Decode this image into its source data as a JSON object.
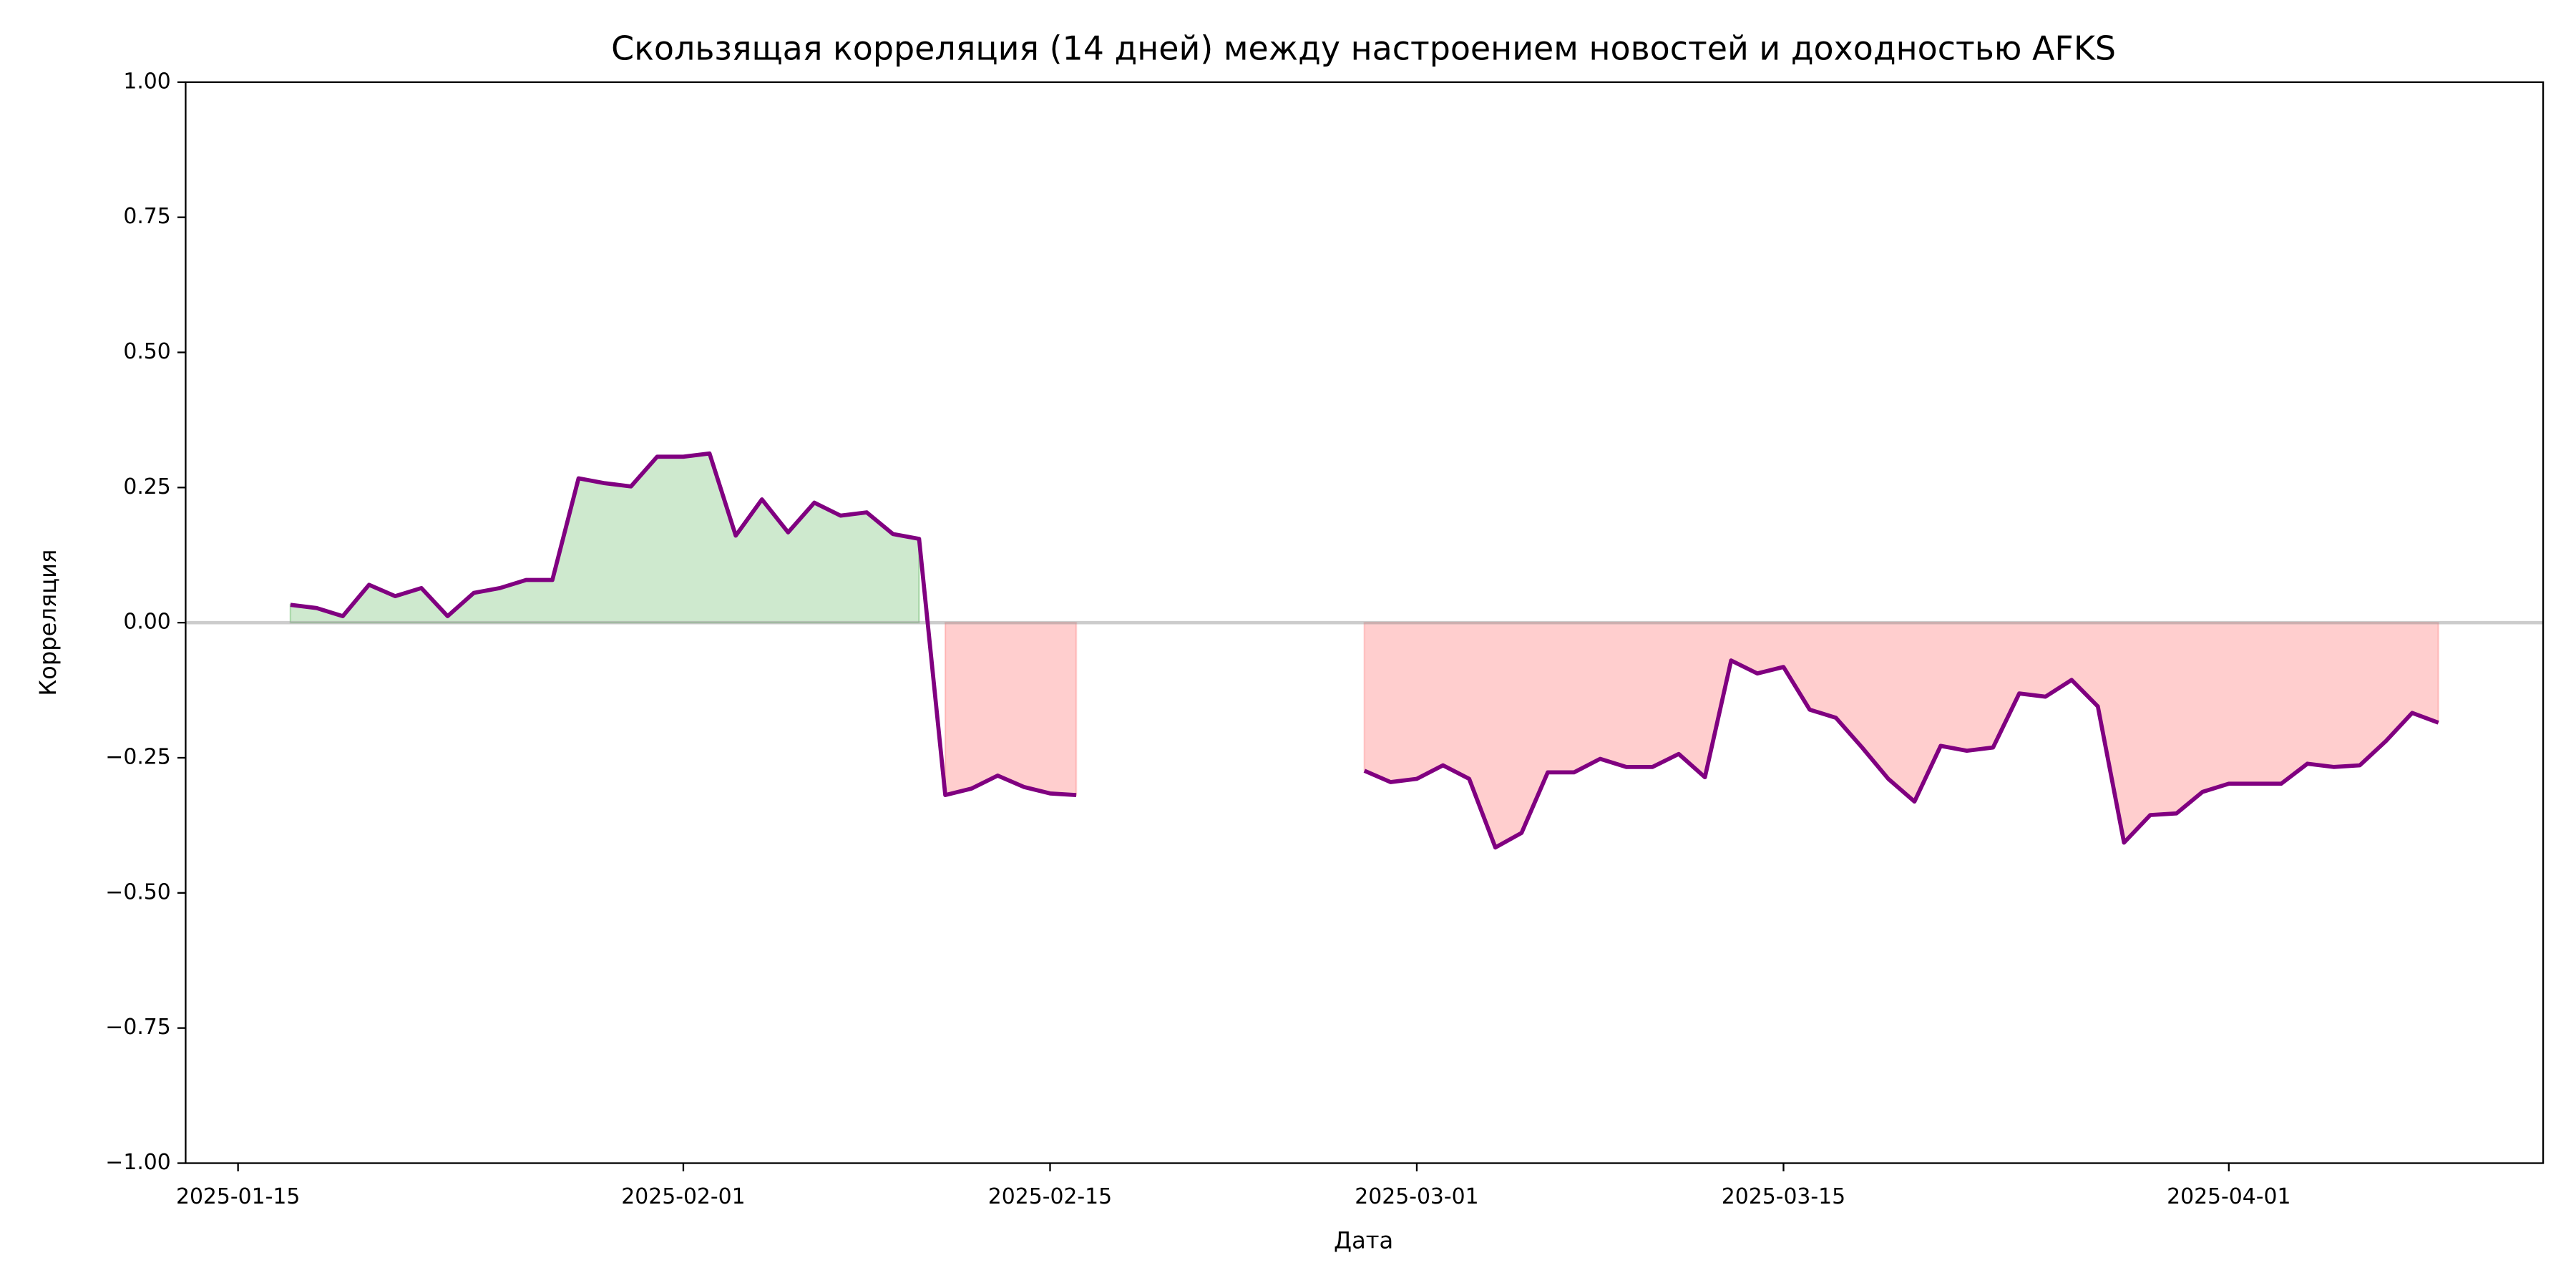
{
  "chart_data": {
    "type": "line",
    "title": "Скользящая корреляция (14 дней) между настроением новостей и доходностью AFKS",
    "xlabel": "Дата",
    "ylabel": "Корреляция",
    "x": [
      "2025-01-17",
      "2025-01-18",
      "2025-01-19",
      "2025-01-20",
      "2025-01-21",
      "2025-01-22",
      "2025-01-23",
      "2025-01-24",
      "2025-01-25",
      "2025-01-26",
      "2025-01-27",
      "2025-01-28",
      "2025-01-29",
      "2025-01-30",
      "2025-01-31",
      "2025-02-01",
      "2025-02-02",
      "2025-02-03",
      "2025-02-04",
      "2025-02-05",
      "2025-02-06",
      "2025-02-07",
      "2025-02-08",
      "2025-02-09",
      "2025-02-10",
      "2025-02-11",
      "2025-02-12",
      "2025-02-13",
      "2025-02-14",
      "2025-02-15",
      "2025-02-16",
      "2025-02-17",
      "2025-02-18",
      "2025-02-19",
      "2025-02-20",
      "2025-02-21",
      "2025-02-22",
      "2025-02-23",
      "2025-02-24",
      "2025-02-25",
      "2025-02-26",
      "2025-02-27",
      "2025-02-28",
      "2025-03-01",
      "2025-03-02",
      "2025-03-03",
      "2025-03-04",
      "2025-03-05",
      "2025-03-06",
      "2025-03-07",
      "2025-03-08",
      "2025-03-09",
      "2025-03-10",
      "2025-03-11",
      "2025-03-12",
      "2025-03-13",
      "2025-03-14",
      "2025-03-15",
      "2025-03-16",
      "2025-03-17",
      "2025-03-18",
      "2025-03-19",
      "2025-03-20",
      "2025-03-21",
      "2025-03-22",
      "2025-03-23",
      "2025-03-24",
      "2025-03-25",
      "2025-03-26",
      "2025-03-27",
      "2025-03-28",
      "2025-03-29",
      "2025-03-30",
      "2025-03-31",
      "2025-04-01",
      "2025-04-02",
      "2025-04-03",
      "2025-04-04",
      "2025-04-05",
      "2025-04-06",
      "2025-04-07",
      "2025-04-08",
      "2025-04-09"
    ],
    "series": [
      {
        "name": "Корреляция",
        "color": "#800080",
        "values": [
          0.033,
          0.027,
          0.012,
          0.07,
          0.049,
          0.064,
          0.012,
          0.055,
          0.064,
          0.079,
          0.079,
          0.267,
          0.258,
          0.252,
          0.307,
          0.307,
          0.313,
          0.161,
          0.228,
          0.167,
          0.222,
          0.198,
          0.204,
          0.164,
          0.155,
          -0.319,
          -0.307,
          -0.283,
          -0.304,
          -0.316,
          -0.319,
          null,
          null,
          null,
          null,
          null,
          null,
          null,
          null,
          null,
          null,
          -0.274,
          -0.295,
          -0.289,
          -0.264,
          -0.289,
          -0.416,
          -0.389,
          -0.277,
          -0.277,
          -0.252,
          -0.267,
          -0.267,
          -0.243,
          -0.286,
          -0.07,
          -0.094,
          -0.082,
          -0.161,
          -0.176,
          -0.231,
          -0.289,
          -0.331,
          -0.228,
          -0.237,
          -0.231,
          -0.131,
          -0.137,
          -0.106,
          -0.155,
          -0.407,
          -0.356,
          -0.353,
          -0.313,
          -0.298,
          -0.298,
          -0.298,
          -0.261,
          -0.267,
          -0.264,
          -0.219,
          -0.167,
          -0.185
        ]
      }
    ],
    "positive_color": "#2ca02c",
    "negative_color": "#ff6b6b",
    "hline": 0,
    "xlim": [
      "2025-01-13",
      "2025-04-13"
    ],
    "xticks": [
      "2025-01-15",
      "2025-02-01",
      "2025-02-15",
      "2025-03-01",
      "2025-03-15",
      "2025-04-01"
    ],
    "ylim": [
      -1,
      1
    ],
    "yticks": [
      {
        "value": -1,
        "label": "−1.00"
      },
      {
        "value": -0.75,
        "label": "−0.75"
      },
      {
        "value": -0.5,
        "label": "−0.50"
      },
      {
        "value": -0.25,
        "label": "−0.25"
      },
      {
        "value": 0,
        "label": "0.00"
      },
      {
        "value": 0.25,
        "label": "0.25"
      },
      {
        "value": 0.5,
        "label": "0.50"
      },
      {
        "value": 0.75,
        "label": "0.75"
      },
      {
        "value": 1,
        "label": "1.00"
      }
    ]
  }
}
